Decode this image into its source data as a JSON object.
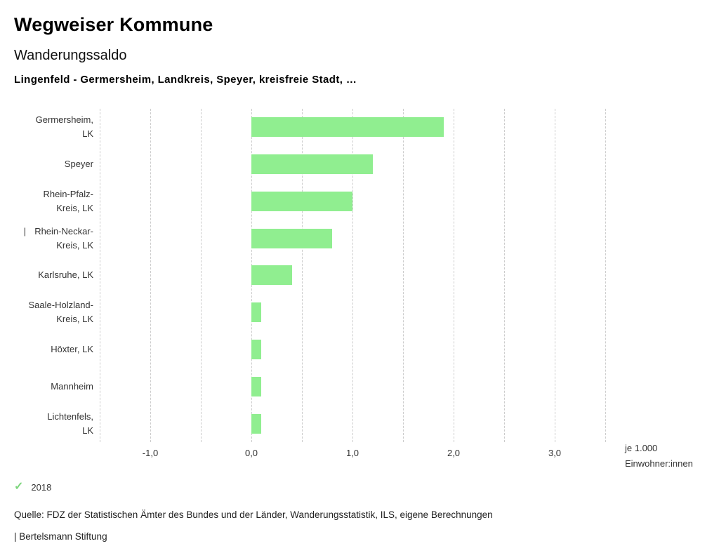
{
  "header": {
    "title": "Wegweiser Kommune",
    "subtitle": "Wanderungssaldo",
    "context": "Lingenfeld - Germersheim, Landkreis, Speyer, kreisfreie Stadt, …"
  },
  "chart_data": {
    "type": "bar",
    "orientation": "horizontal",
    "title": "Wanderungssaldo",
    "subtitle": "Lingenfeld - Germersheim, Landkreis, Speyer, kreisfreie Stadt, …",
    "categories": [
      "Germersheim, LK",
      "Speyer",
      "Rhein-Pfalz-Kreis, LK",
      "Rhein-Neckar-Kreis, LK",
      "Karlsruhe, LK",
      "Saale-Holzland-Kreis, LK",
      "Höxter, LK",
      "Mannheim",
      "Lichtenfels, LK"
    ],
    "label_lines": [
      [
        "Germersheim,",
        "LK"
      ],
      [
        "Speyer"
      ],
      [
        "Rhein-Pfalz-",
        "Kreis, LK"
      ],
      [
        "Rhein-Neckar-",
        "Kreis, LK"
      ],
      [
        "Karlsruhe, LK"
      ],
      [
        "Saale-Holzland-",
        "Kreis, LK"
      ],
      [
        "Höxter, LK"
      ],
      [
        "Mannheim"
      ],
      [
        "Lichtenfels,",
        "LK"
      ]
    ],
    "label_prefixes": [
      "",
      "",
      "",
      "|",
      "",
      "",
      "",
      "",
      ""
    ],
    "series": [
      {
        "name": "2018",
        "values": [
          1.9,
          1.2,
          1.0,
          0.8,
          0.4,
          0.1,
          0.1,
          0.1,
          0.1
        ]
      }
    ],
    "xlim": [
      -1.5,
      3.5
    ],
    "grid_step": 0.5,
    "grid": "dashed-vertical",
    "x_ticks": [
      -1.0,
      0.0,
      1.0,
      2.0,
      3.0
    ],
    "x_tick_labels": [
      "-1,0",
      "0,0",
      "1,0",
      "2,0",
      "3,0"
    ],
    "unit_note": [
      "je 1.000",
      "Einwohner:innen"
    ],
    "legend_position": "bottom-left",
    "bar_color": "#90ee90"
  },
  "legend": {
    "check_glyph": "✓",
    "items": [
      {
        "label": "2018",
        "checked": true
      }
    ]
  },
  "footer": {
    "source": "Quelle: FDZ der Statistischen Ämter des Bundes und der Länder, Wanderungsstatistik, ILS, eigene Berechnungen",
    "branding": "| Bertelsmann Stiftung"
  },
  "colors": {
    "bar": "#90ee90",
    "check": "#7ed67e",
    "grid": "#cccccc",
    "text": "#333333"
  }
}
